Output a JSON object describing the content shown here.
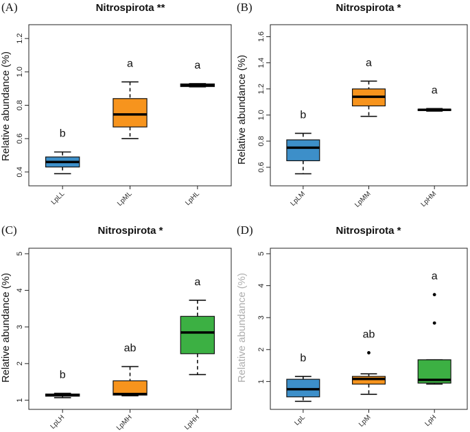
{
  "colors": {
    "blue": "#3d8fc9",
    "orange": "#f7941d",
    "green": "#3cb043"
  },
  "chart_data": [
    {
      "type": "box",
      "panel": "(A)",
      "title": "Nitrospirota **",
      "ylabel": "Relative abundance (%)",
      "ylim": [
        0.35,
        1.25
      ],
      "yticks": [
        0.4,
        0.6,
        0.8,
        1.0,
        1.2
      ],
      "ytick_labels": [
        "0.4",
        "0.6",
        "0.8",
        "1.0",
        "1.2"
      ],
      "categories": [
        "LpLL",
        "LpML",
        "LpHL"
      ],
      "boxes": [
        {
          "color": "blue",
          "min": 0.39,
          "q1": 0.43,
          "median": 0.46,
          "q3": 0.49,
          "max": 0.52,
          "outliers": [],
          "sig": "b"
        },
        {
          "color": "orange",
          "min": 0.6,
          "q1": 0.67,
          "median": 0.745,
          "q3": 0.84,
          "max": 0.94,
          "outliers": [],
          "sig": "a"
        },
        {
          "color": "orange",
          "min": 0.91,
          "q1": 0.912,
          "median": 0.92,
          "q3": 0.928,
          "max": 0.93,
          "outliers": [],
          "sig": "a"
        }
      ]
    },
    {
      "type": "box",
      "panel": "(B)",
      "title": "Nitrospirota *",
      "ylabel": "Relative abundance (%)",
      "ylim": [
        0.5,
        1.65
      ],
      "yticks": [
        0.6,
        0.8,
        1.0,
        1.2,
        1.4,
        1.6
      ],
      "ytick_labels": [
        "0.6",
        "0.8",
        "1.0",
        "1.2",
        "1.4",
        "1.6"
      ],
      "categories": [
        "LpLM",
        "LpMM",
        "LpHM"
      ],
      "boxes": [
        {
          "color": "blue",
          "min": 0.55,
          "q1": 0.65,
          "median": 0.75,
          "q3": 0.81,
          "max": 0.86,
          "outliers": [],
          "sig": "b"
        },
        {
          "color": "orange",
          "min": 0.99,
          "q1": 1.07,
          "median": 1.14,
          "q3": 1.2,
          "max": 1.26,
          "outliers": [],
          "sig": "a"
        },
        {
          "color": "orange",
          "min": 1.03,
          "q1": 1.035,
          "median": 1.04,
          "q3": 1.045,
          "max": 1.05,
          "outliers": [],
          "sig": "a"
        }
      ]
    },
    {
      "type": "box",
      "panel": "(C)",
      "title": "Nitrospirota *",
      "ylabel": "Relative abundance (%)",
      "ylim": [
        0.9,
        5.0
      ],
      "yticks": [
        1,
        2,
        3,
        4,
        5
      ],
      "ytick_labels": [
        "1",
        "2",
        "3",
        "4",
        "5"
      ],
      "categories": [
        "LpLH",
        "LpMH",
        "LpHH"
      ],
      "boxes": [
        {
          "color": "blue",
          "min": 1.07,
          "q1": 1.11,
          "median": 1.14,
          "q3": 1.17,
          "max": 1.19,
          "outliers": [],
          "sig": "b"
        },
        {
          "color": "orange",
          "min": 1.12,
          "q1": 1.14,
          "median": 1.17,
          "q3": 1.53,
          "max": 1.92,
          "outliers": [],
          "sig": "ab"
        },
        {
          "color": "green",
          "min": 1.7,
          "q1": 2.27,
          "median": 2.85,
          "q3": 3.29,
          "max": 3.73,
          "outliers": [],
          "sig": "a"
        }
      ]
    },
    {
      "type": "box",
      "panel": "(D)",
      "title": "Nitrospirota *",
      "ylabel": "Relative abundance (%)",
      "ylim": [
        0.3,
        5.0
      ],
      "yticks": [
        1,
        2,
        3,
        4,
        5
      ],
      "ytick_labels": [
        "1",
        "2",
        "3",
        "4",
        "5"
      ],
      "categories": [
        "LpL",
        "LpM",
        "LpH"
      ],
      "boxes": [
        {
          "color": "blue",
          "min": 0.38,
          "q1": 0.52,
          "median": 0.76,
          "q3": 1.07,
          "max": 1.16,
          "outliers": [],
          "sig": "b"
        },
        {
          "color": "orange",
          "min": 0.6,
          "q1": 0.92,
          "median": 1.08,
          "q3": 1.16,
          "max": 1.24,
          "outliers": [
            1.9
          ],
          "sig": "ab"
        },
        {
          "color": "green",
          "min": 0.92,
          "q1": 0.95,
          "median": 1.05,
          "q3": 1.68,
          "max": 1.68,
          "outliers": [
            2.83,
            3.72
          ],
          "sig": "a"
        }
      ]
    }
  ]
}
